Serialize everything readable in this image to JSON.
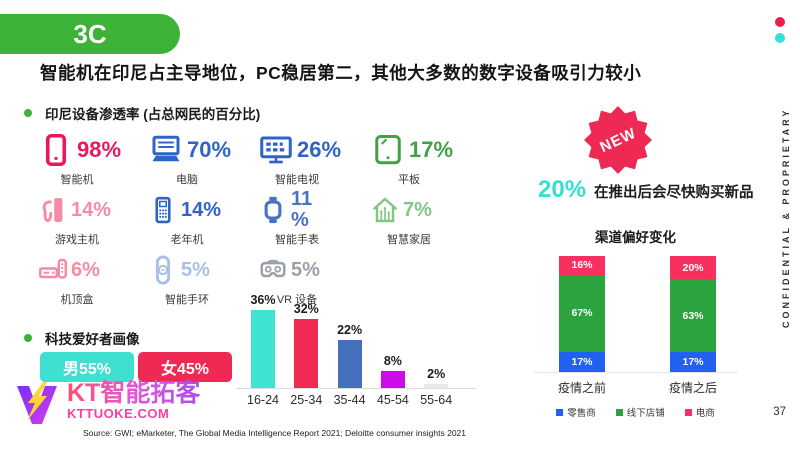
{
  "slide": {
    "badge": "3C",
    "title": "智能机在印尼占主导地位，PC稳居第二，其他大多数的数字设备吸引力较小",
    "side_label": "CONFIDENTIAL & PROPRIETARY",
    "page_number": "37"
  },
  "colors": {
    "accent_green": "#3cb336",
    "accent_crimson": "#ee2a54",
    "accent_cyan": "#3fe0d0",
    "accent_blue": "#2f6bd8",
    "deco_dot_red": "#e91e4f",
    "deco_dot_cyan": "#36e0d6"
  },
  "penetration": {
    "title": "印尼设备渗透率 (占总网民的百分比)",
    "items": [
      {
        "label": "智能机",
        "value": "98%",
        "icon": "smartphone-icon",
        "color": "#e6195c"
      },
      {
        "label": "电脑",
        "value": "70%",
        "icon": "laptop-icon",
        "color": "#2f63c8"
      },
      {
        "label": "智能电视",
        "value": "26%",
        "icon": "smart-tv-icon",
        "color": "#2f63c8"
      },
      {
        "label": "平板",
        "value": "17%",
        "icon": "tablet-icon",
        "color": "#43a047"
      },
      {
        "label": "游戏主机",
        "value": "14%",
        "icon": "game-console-icon",
        "color": "#f48ca6"
      },
      {
        "label": "老年机",
        "value": "14%",
        "icon": "feature-phone-icon",
        "color": "#2f63c8"
      },
      {
        "label": "智能手表",
        "value": "11 %",
        "icon": "smartwatch-icon",
        "color": "#4a72c4",
        "wrap": true
      },
      {
        "label": "智慧家居",
        "value": "7%",
        "icon": "smart-home-icon",
        "color": "#82c785"
      },
      {
        "label": "机顶盒",
        "value": "6%",
        "icon": "set-top-box-icon",
        "color": "#f48ca6"
      },
      {
        "label": "智能手环",
        "value": "5%",
        "icon": "smart-band-icon",
        "color": "#aabfe8"
      },
      {
        "label": "VR 设备",
        "value": "5%",
        "icon": "vr-headset-icon",
        "color": "#9aa0a6"
      }
    ]
  },
  "tech_profile": {
    "title": "科技爱好者画像",
    "male_label": "男55%",
    "female_label": "女45%"
  },
  "new_product": {
    "badge": "NEW",
    "stat": "20%",
    "text": "在推出后会尽快购买新品"
  },
  "chart_data": [
    {
      "type": "bar",
      "name": "tech-fans-age-distribution",
      "categories": [
        "16-24",
        "25-34",
        "35-44",
        "45-54",
        "55-64"
      ],
      "values": [
        36,
        32,
        22,
        8,
        2
      ],
      "value_labels": [
        "36%",
        "32%",
        "22%",
        "8%",
        "2%"
      ],
      "bar_colors": [
        "#40e2d2",
        "#f02a53",
        "#4470bd",
        "#cb0ce8",
        "#e8e8e8"
      ],
      "ylim": [
        0,
        40
      ],
      "grid": false,
      "legend_position": "none"
    },
    {
      "type": "bar",
      "stacked": true,
      "name": "channel-preference-change",
      "title": "渠道偏好变化",
      "categories": [
        "疫情之前",
        "疫情之后"
      ],
      "series": [
        {
          "name": "零售商",
          "color": "#2160f0",
          "values": [
            17,
            17
          ],
          "value_labels": [
            "17%",
            "17%"
          ]
        },
        {
          "name": "线下店铺",
          "color": "#2ba33f",
          "values": [
            67,
            63
          ],
          "value_labels": [
            "67%",
            "63%"
          ]
        },
        {
          "name": "电商",
          "color": "#f8305f",
          "values": [
            16,
            20
          ],
          "value_labels": [
            "16%",
            "20%"
          ]
        }
      ],
      "ylim": [
        0,
        100
      ],
      "grid": false,
      "legend_position": "bottom"
    }
  ],
  "footer": {
    "logo_text": "KT智能拓客",
    "logo_site": "KTTUOKE.COM",
    "source": "Source: GWI; eMarketer, The Global Media Intelligence Report 2021; Deloitte consumer insights 2021"
  }
}
